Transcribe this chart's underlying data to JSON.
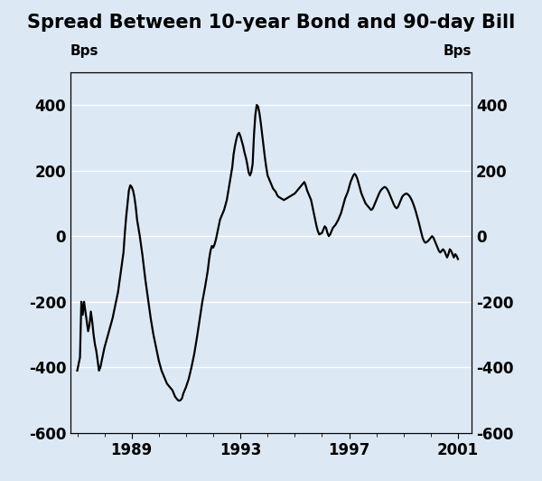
{
  "title": "Spread Between 10-year Bond and 90-day Bill",
  "ylabel_left": "Bps",
  "ylabel_right": "Bps",
  "ylim": [
    -600,
    500
  ],
  "yticks": [
    -600,
    -400,
    -200,
    0,
    200,
    400
  ],
  "xlim_start": 1986.75,
  "xlim_end": 2001.5,
  "xticks": [
    1989,
    1993,
    1997,
    2001
  ],
  "background_color": "#dce9f5",
  "line_color": "#000000",
  "line_width": 1.6,
  "title_fontsize": 15,
  "label_fontsize": 11,
  "tick_fontsize": 12,
  "series": [
    [
      1987.0,
      -410
    ],
    [
      1987.05,
      -390
    ],
    [
      1987.1,
      -370
    ],
    [
      1987.15,
      -200
    ],
    [
      1987.2,
      -240
    ],
    [
      1987.25,
      -200
    ],
    [
      1987.3,
      -230
    ],
    [
      1987.35,
      -260
    ],
    [
      1987.4,
      -290
    ],
    [
      1987.45,
      -270
    ],
    [
      1987.5,
      -230
    ],
    [
      1987.55,
      -260
    ],
    [
      1987.6,
      -300
    ],
    [
      1987.65,
      -330
    ],
    [
      1987.7,
      -350
    ],
    [
      1987.75,
      -380
    ],
    [
      1987.8,
      -410
    ],
    [
      1987.85,
      -400
    ],
    [
      1987.9,
      -380
    ],
    [
      1987.95,
      -360
    ],
    [
      1988.0,
      -340
    ],
    [
      1988.1,
      -310
    ],
    [
      1988.2,
      -280
    ],
    [
      1988.3,
      -250
    ],
    [
      1988.4,
      -210
    ],
    [
      1988.5,
      -170
    ],
    [
      1988.6,
      -110
    ],
    [
      1988.7,
      -50
    ],
    [
      1988.75,
      10
    ],
    [
      1988.8,
      60
    ],
    [
      1988.85,
      100
    ],
    [
      1988.9,
      140
    ],
    [
      1988.95,
      155
    ],
    [
      1989.0,
      150
    ],
    [
      1989.05,
      140
    ],
    [
      1989.1,
      120
    ],
    [
      1989.15,
      90
    ],
    [
      1989.2,
      50
    ],
    [
      1989.3,
      0
    ],
    [
      1989.4,
      -60
    ],
    [
      1989.5,
      -130
    ],
    [
      1989.6,
      -190
    ],
    [
      1989.7,
      -250
    ],
    [
      1989.8,
      -300
    ],
    [
      1989.9,
      -340
    ],
    [
      1990.0,
      -380
    ],
    [
      1990.1,
      -410
    ],
    [
      1990.2,
      -430
    ],
    [
      1990.3,
      -450
    ],
    [
      1990.4,
      -460
    ],
    [
      1990.5,
      -470
    ],
    [
      1990.55,
      -480
    ],
    [
      1990.6,
      -490
    ],
    [
      1990.65,
      -495
    ],
    [
      1990.7,
      -500
    ],
    [
      1990.75,
      -502
    ],
    [
      1990.8,
      -500
    ],
    [
      1990.85,
      -495
    ],
    [
      1990.9,
      -480
    ],
    [
      1991.0,
      -460
    ],
    [
      1991.1,
      -435
    ],
    [
      1991.2,
      -400
    ],
    [
      1991.3,
      -360
    ],
    [
      1991.4,
      -310
    ],
    [
      1991.5,
      -255
    ],
    [
      1991.6,
      -200
    ],
    [
      1991.7,
      -155
    ],
    [
      1991.8,
      -105
    ],
    [
      1991.85,
      -70
    ],
    [
      1991.9,
      -45
    ],
    [
      1991.95,
      -30
    ],
    [
      1992.0,
      -35
    ],
    [
      1992.05,
      -25
    ],
    [
      1992.1,
      -10
    ],
    [
      1992.15,
      10
    ],
    [
      1992.2,
      30
    ],
    [
      1992.25,
      50
    ],
    [
      1992.3,
      60
    ],
    [
      1992.4,
      80
    ],
    [
      1992.5,
      110
    ],
    [
      1992.6,
      160
    ],
    [
      1992.7,
      210
    ],
    [
      1992.75,
      250
    ],
    [
      1992.8,
      275
    ],
    [
      1992.85,
      295
    ],
    [
      1992.9,
      310
    ],
    [
      1992.95,
      315
    ],
    [
      1993.0,
      305
    ],
    [
      1993.05,
      290
    ],
    [
      1993.1,
      275
    ],
    [
      1993.15,
      255
    ],
    [
      1993.2,
      240
    ],
    [
      1993.25,
      220
    ],
    [
      1993.3,
      195
    ],
    [
      1993.35,
      185
    ],
    [
      1993.4,
      195
    ],
    [
      1993.45,
      220
    ],
    [
      1993.5,
      310
    ],
    [
      1993.55,
      370
    ],
    [
      1993.6,
      400
    ],
    [
      1993.65,
      395
    ],
    [
      1993.7,
      375
    ],
    [
      1993.75,
      345
    ],
    [
      1993.8,
      310
    ],
    [
      1993.85,
      275
    ],
    [
      1993.9,
      240
    ],
    [
      1993.95,
      210
    ],
    [
      1994.0,
      185
    ],
    [
      1994.1,
      165
    ],
    [
      1994.15,
      155
    ],
    [
      1994.2,
      145
    ],
    [
      1994.3,
      135
    ],
    [
      1994.35,
      125
    ],
    [
      1994.4,
      120
    ],
    [
      1994.5,
      115
    ],
    [
      1994.6,
      110
    ],
    [
      1994.7,
      115
    ],
    [
      1994.8,
      120
    ],
    [
      1994.9,
      125
    ],
    [
      1995.0,
      130
    ],
    [
      1995.1,
      140
    ],
    [
      1995.2,
      150
    ],
    [
      1995.3,
      160
    ],
    [
      1995.35,
      165
    ],
    [
      1995.4,
      155
    ],
    [
      1995.45,
      140
    ],
    [
      1995.5,
      130
    ],
    [
      1995.55,
      120
    ],
    [
      1995.6,
      110
    ],
    [
      1995.65,
      90
    ],
    [
      1995.7,
      70
    ],
    [
      1995.75,
      50
    ],
    [
      1995.8,
      30
    ],
    [
      1995.85,
      15
    ],
    [
      1995.9,
      5
    ],
    [
      1996.0,
      10
    ],
    [
      1996.05,
      20
    ],
    [
      1996.1,
      30
    ],
    [
      1996.15,
      25
    ],
    [
      1996.2,
      10
    ],
    [
      1996.25,
      0
    ],
    [
      1996.3,
      5
    ],
    [
      1996.35,
      15
    ],
    [
      1996.4,
      25
    ],
    [
      1996.5,
      35
    ],
    [
      1996.6,
      50
    ],
    [
      1996.7,
      70
    ],
    [
      1996.75,
      85
    ],
    [
      1996.8,
      100
    ],
    [
      1996.85,
      115
    ],
    [
      1996.9,
      125
    ],
    [
      1996.95,
      135
    ],
    [
      1997.0,
      150
    ],
    [
      1997.05,
      165
    ],
    [
      1997.1,
      175
    ],
    [
      1997.15,
      185
    ],
    [
      1997.2,
      190
    ],
    [
      1997.25,
      185
    ],
    [
      1997.3,
      175
    ],
    [
      1997.35,
      160
    ],
    [
      1997.4,
      145
    ],
    [
      1997.45,
      130
    ],
    [
      1997.5,
      120
    ],
    [
      1997.55,
      110
    ],
    [
      1997.6,
      100
    ],
    [
      1997.65,
      95
    ],
    [
      1997.7,
      90
    ],
    [
      1997.75,
      85
    ],
    [
      1997.8,
      80
    ],
    [
      1997.85,
      82
    ],
    [
      1997.9,
      90
    ],
    [
      1997.95,
      100
    ],
    [
      1998.0,
      110
    ],
    [
      1998.05,
      120
    ],
    [
      1998.1,
      130
    ],
    [
      1998.15,
      138
    ],
    [
      1998.2,
      143
    ],
    [
      1998.25,
      147
    ],
    [
      1998.3,
      150
    ],
    [
      1998.35,
      148
    ],
    [
      1998.4,
      143
    ],
    [
      1998.45,
      135
    ],
    [
      1998.5,
      125
    ],
    [
      1998.55,
      115
    ],
    [
      1998.6,
      105
    ],
    [
      1998.65,
      95
    ],
    [
      1998.7,
      88
    ],
    [
      1998.75,
      85
    ],
    [
      1998.8,
      90
    ],
    [
      1998.85,
      100
    ],
    [
      1998.9,
      110
    ],
    [
      1998.95,
      120
    ],
    [
      1999.0,
      125
    ],
    [
      1999.05,
      128
    ],
    [
      1999.1,
      130
    ],
    [
      1999.15,
      128
    ],
    [
      1999.2,
      124
    ],
    [
      1999.25,
      118
    ],
    [
      1999.3,
      110
    ],
    [
      1999.35,
      100
    ],
    [
      1999.4,
      88
    ],
    [
      1999.45,
      75
    ],
    [
      1999.5,
      60
    ],
    [
      1999.55,
      45
    ],
    [
      1999.6,
      28
    ],
    [
      1999.65,
      10
    ],
    [
      1999.7,
      -5
    ],
    [
      1999.75,
      -15
    ],
    [
      1999.8,
      -20
    ],
    [
      1999.85,
      -18
    ],
    [
      1999.9,
      -15
    ],
    [
      1999.95,
      -10
    ],
    [
      2000.0,
      -5
    ],
    [
      2000.05,
      0
    ],
    [
      2000.1,
      -5
    ],
    [
      2000.15,
      -15
    ],
    [
      2000.2,
      -25
    ],
    [
      2000.25,
      -35
    ],
    [
      2000.3,
      -45
    ],
    [
      2000.35,
      -50
    ],
    [
      2000.4,
      -45
    ],
    [
      2000.45,
      -40
    ],
    [
      2000.5,
      -45
    ],
    [
      2000.55,
      -55
    ],
    [
      2000.6,
      -65
    ],
    [
      2000.65,
      -55
    ],
    [
      2000.7,
      -40
    ],
    [
      2000.75,
      -45
    ],
    [
      2000.8,
      -55
    ],
    [
      2000.85,
      -65
    ],
    [
      2000.9,
      -55
    ],
    [
      2000.95,
      -60
    ],
    [
      2001.0,
      -70
    ]
  ]
}
